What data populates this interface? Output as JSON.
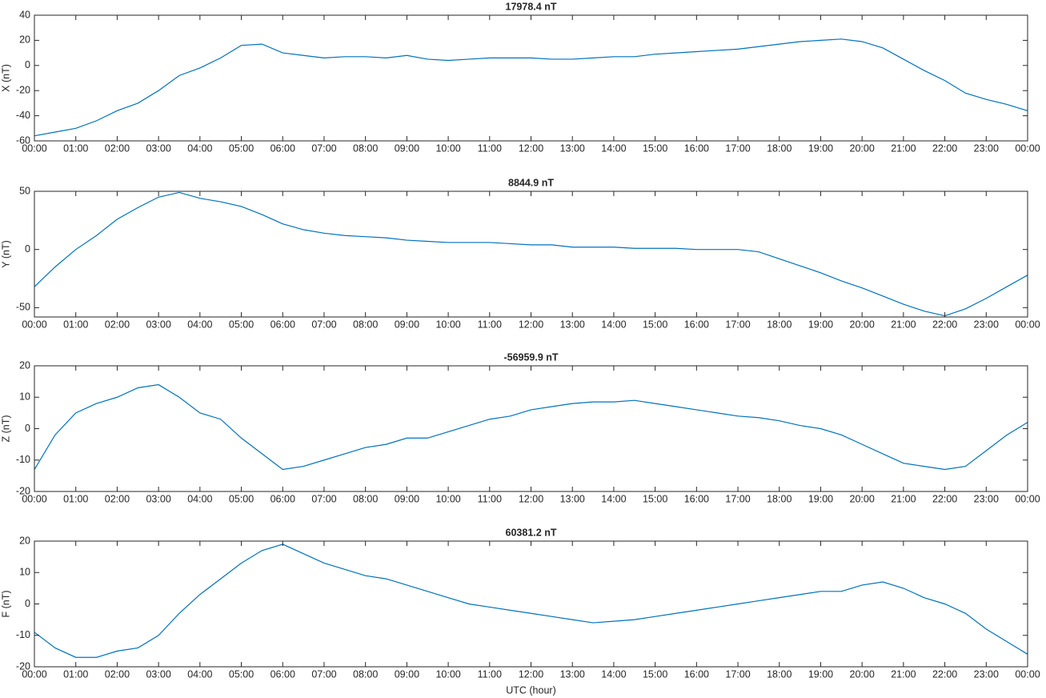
{
  "chart_data": [
    {
      "type": "line",
      "title": "17978.4 nT",
      "y_label": "X (nT)",
      "x": [
        0,
        0.5,
        1,
        1.5,
        2,
        2.5,
        3,
        3.5,
        4,
        4.5,
        5,
        5.5,
        6,
        6.5,
        7,
        7.5,
        8,
        8.5,
        9,
        9.5,
        10,
        10.5,
        11,
        11.5,
        12,
        12.5,
        13,
        13.5,
        14,
        14.5,
        15,
        15.5,
        16,
        16.5,
        17,
        17.5,
        18,
        18.5,
        19,
        19.5,
        20,
        20.5,
        21,
        21.5,
        22,
        22.5,
        23,
        23.5,
        24
      ],
      "values": [
        -56,
        -53,
        -50,
        -44,
        -36,
        -30,
        -20,
        -8,
        -2,
        6,
        16,
        17,
        10,
        8,
        6,
        7,
        7,
        6,
        8,
        5,
        4,
        5,
        6,
        6,
        6,
        5,
        5,
        6,
        7,
        7,
        9,
        10,
        11,
        12,
        13,
        15,
        17,
        19,
        20,
        21,
        19,
        14,
        5,
        -4,
        -12,
        -22,
        -27,
        -31,
        -36
      ],
      "color": "#0072bd",
      "xlim": [
        0,
        24
      ],
      "xticks": [
        {
          "value": 0,
          "label": "00:00"
        },
        {
          "value": 1,
          "label": "01:00"
        },
        {
          "value": 2,
          "label": "02:00"
        },
        {
          "value": 3,
          "label": "03:00"
        },
        {
          "value": 4,
          "label": "04:00"
        },
        {
          "value": 5,
          "label": "05:00"
        },
        {
          "value": 6,
          "label": "06:00"
        },
        {
          "value": 7,
          "label": "07:00"
        },
        {
          "value": 8,
          "label": "08:00"
        },
        {
          "value": 9,
          "label": "09:00"
        },
        {
          "value": 10,
          "label": "10:00"
        },
        {
          "value": 11,
          "label": "11:00"
        },
        {
          "value": 12,
          "label": "12:00"
        },
        {
          "value": 13,
          "label": "13:00"
        },
        {
          "value": 14,
          "label": "14:00"
        },
        {
          "value": 15,
          "label": "15:00"
        },
        {
          "value": 16,
          "label": "16:00"
        },
        {
          "value": 17,
          "label": "17:00"
        },
        {
          "value": 18,
          "label": "18:00"
        },
        {
          "value": 19,
          "label": "19:00"
        },
        {
          "value": 20,
          "label": "20:00"
        },
        {
          "value": 21,
          "label": "21:00"
        },
        {
          "value": 22,
          "label": "22:00"
        },
        {
          "value": 23,
          "label": "23:00"
        },
        {
          "value": 24,
          "label": "00:00"
        }
      ],
      "ylim": [
        -60,
        40
      ],
      "yticks": [
        -60,
        -40,
        -20,
        0,
        20,
        40
      ]
    },
    {
      "type": "line",
      "title": "8844.9 nT",
      "y_label": "Y (nT)",
      "x": [
        0,
        0.5,
        1,
        1.5,
        2,
        2.5,
        3,
        3.5,
        4,
        4.5,
        5,
        5.5,
        6,
        6.5,
        7,
        7.5,
        8,
        8.5,
        9,
        9.5,
        10,
        10.5,
        11,
        11.5,
        12,
        12.5,
        13,
        13.5,
        14,
        14.5,
        15,
        15.5,
        16,
        16.5,
        17,
        17.5,
        18,
        18.5,
        19,
        19.5,
        20,
        20.5,
        21,
        21.5,
        22,
        22.5,
        23,
        23.5,
        24
      ],
      "values": [
        -32,
        -15,
        0,
        12,
        26,
        36,
        45,
        49,
        44,
        41,
        37,
        30,
        22,
        17,
        14,
        12,
        11,
        10,
        8,
        7,
        6,
        6,
        6,
        5,
        4,
        4,
        2,
        2,
        2,
        1,
        1,
        1,
        0,
        0,
        0,
        -2,
        -8,
        -14,
        -20,
        -27,
        -33,
        -40,
        -47,
        -53,
        -57,
        -51,
        -42,
        -32,
        -22
      ],
      "color": "#0072bd",
      "xlim": [
        0,
        24
      ],
      "xticks": [
        {
          "value": 0,
          "label": "00:00"
        },
        {
          "value": 1,
          "label": "01:00"
        },
        {
          "value": 2,
          "label": "02:00"
        },
        {
          "value": 3,
          "label": "03:00"
        },
        {
          "value": 4,
          "label": "04:00"
        },
        {
          "value": 5,
          "label": "05:00"
        },
        {
          "value": 6,
          "label": "06:00"
        },
        {
          "value": 7,
          "label": "07:00"
        },
        {
          "value": 8,
          "label": "08:00"
        },
        {
          "value": 9,
          "label": "09:00"
        },
        {
          "value": 10,
          "label": "10:00"
        },
        {
          "value": 11,
          "label": "11:00"
        },
        {
          "value": 12,
          "label": "12:00"
        },
        {
          "value": 13,
          "label": "13:00"
        },
        {
          "value": 14,
          "label": "14:00"
        },
        {
          "value": 15,
          "label": "15:00"
        },
        {
          "value": 16,
          "label": "16:00"
        },
        {
          "value": 17,
          "label": "17:00"
        },
        {
          "value": 18,
          "label": "18:00"
        },
        {
          "value": 19,
          "label": "19:00"
        },
        {
          "value": 20,
          "label": "20:00"
        },
        {
          "value": 21,
          "label": "21:00"
        },
        {
          "value": 22,
          "label": "22:00"
        },
        {
          "value": 23,
          "label": "23:00"
        },
        {
          "value": 24,
          "label": "00:00"
        }
      ],
      "ylim": [
        -58,
        50
      ],
      "yticks": [
        -50,
        0,
        50
      ]
    },
    {
      "type": "line",
      "title": "-56959.9 nT",
      "y_label": "Z (nT)",
      "x": [
        0,
        0.5,
        1,
        1.5,
        2,
        2.5,
        3,
        3.5,
        4,
        4.5,
        5,
        5.5,
        6,
        6.5,
        7,
        7.5,
        8,
        8.5,
        9,
        9.5,
        10,
        10.5,
        11,
        11.5,
        12,
        12.5,
        13,
        13.5,
        14,
        14.5,
        15,
        15.5,
        16,
        16.5,
        17,
        17.5,
        18,
        18.5,
        19,
        19.5,
        20,
        20.5,
        21,
        21.5,
        22,
        22.5,
        23,
        23.5,
        24
      ],
      "values": [
        -13,
        -2,
        5,
        8,
        10,
        13,
        14,
        10,
        5,
        3,
        -3,
        -8,
        -13,
        -12,
        -10,
        -8,
        -6,
        -5,
        -3,
        -3,
        -1,
        1,
        3,
        4,
        6,
        7,
        8,
        8.5,
        8.5,
        9,
        8,
        7,
        6,
        5,
        4,
        3.5,
        2.5,
        1,
        0,
        -2,
        -5,
        -8,
        -11,
        -12,
        -13,
        -12,
        -7,
        -2,
        2
      ],
      "color": "#0072bd",
      "xlim": [
        0,
        24
      ],
      "xticks": [
        {
          "value": 0,
          "label": "00:00"
        },
        {
          "value": 1,
          "label": "01:00"
        },
        {
          "value": 2,
          "label": "02:00"
        },
        {
          "value": 3,
          "label": "03:00"
        },
        {
          "value": 4,
          "label": "04:00"
        },
        {
          "value": 5,
          "label": "05:00"
        },
        {
          "value": 6,
          "label": "06:00"
        },
        {
          "value": 7,
          "label": "07:00"
        },
        {
          "value": 8,
          "label": "08:00"
        },
        {
          "value": 9,
          "label": "09:00"
        },
        {
          "value": 10,
          "label": "10:00"
        },
        {
          "value": 11,
          "label": "11:00"
        },
        {
          "value": 12,
          "label": "12:00"
        },
        {
          "value": 13,
          "label": "13:00"
        },
        {
          "value": 14,
          "label": "14:00"
        },
        {
          "value": 15,
          "label": "15:00"
        },
        {
          "value": 16,
          "label": "16:00"
        },
        {
          "value": 17,
          "label": "17:00"
        },
        {
          "value": 18,
          "label": "18:00"
        },
        {
          "value": 19,
          "label": "19:00"
        },
        {
          "value": 20,
          "label": "20:00"
        },
        {
          "value": 21,
          "label": "21:00"
        },
        {
          "value": 22,
          "label": "22:00"
        },
        {
          "value": 23,
          "label": "23:00"
        },
        {
          "value": 24,
          "label": "00:00"
        }
      ],
      "ylim": [
        -20,
        20
      ],
      "yticks": [
        -20,
        -10,
        0,
        10,
        20
      ]
    },
    {
      "type": "line",
      "title": "60381.2 nT",
      "y_label": "F (nT)",
      "x_label": "UTC (hour)",
      "x": [
        0,
        0.5,
        1,
        1.5,
        2,
        2.5,
        3,
        3.5,
        4,
        4.5,
        5,
        5.5,
        6,
        6.5,
        7,
        7.5,
        8,
        8.5,
        9,
        9.5,
        10,
        10.5,
        11,
        11.5,
        12,
        12.5,
        13,
        13.5,
        14,
        14.5,
        15,
        15.5,
        16,
        16.5,
        17,
        17.5,
        18,
        18.5,
        19,
        19.5,
        20,
        20.5,
        21,
        21.5,
        22,
        22.5,
        23,
        23.5,
        24
      ],
      "values": [
        -9,
        -14,
        -17,
        -17,
        -15,
        -14,
        -10,
        -3,
        3,
        8,
        13,
        17,
        19,
        16,
        13,
        11,
        9,
        8,
        6,
        4,
        2,
        0,
        -1,
        -2,
        -3,
        -4,
        -5,
        -6,
        -5.5,
        -5,
        -4,
        -3,
        -2,
        -1,
        0,
        1,
        2,
        3,
        4,
        4,
        6,
        7,
        5,
        2,
        0,
        -3,
        -8,
        -12,
        -16
      ],
      "color": "#0072bd",
      "xlim": [
        0,
        24
      ],
      "xticks": [
        {
          "value": 0,
          "label": "00:00"
        },
        {
          "value": 1,
          "label": "01:00"
        },
        {
          "value": 2,
          "label": "02:00"
        },
        {
          "value": 3,
          "label": "03:00"
        },
        {
          "value": 4,
          "label": "04:00"
        },
        {
          "value": 5,
          "label": "05:00"
        },
        {
          "value": 6,
          "label": "06:00"
        },
        {
          "value": 7,
          "label": "07:00"
        },
        {
          "value": 8,
          "label": "08:00"
        },
        {
          "value": 9,
          "label": "09:00"
        },
        {
          "value": 10,
          "label": "10:00"
        },
        {
          "value": 11,
          "label": "11:00"
        },
        {
          "value": 12,
          "label": "12:00"
        },
        {
          "value": 13,
          "label": "13:00"
        },
        {
          "value": 14,
          "label": "14:00"
        },
        {
          "value": 15,
          "label": "15:00"
        },
        {
          "value": 16,
          "label": "16:00"
        },
        {
          "value": 17,
          "label": "17:00"
        },
        {
          "value": 18,
          "label": "18:00"
        },
        {
          "value": 19,
          "label": "19:00"
        },
        {
          "value": 20,
          "label": "20:00"
        },
        {
          "value": 21,
          "label": "21:00"
        },
        {
          "value": 22,
          "label": "22:00"
        },
        {
          "value": 23,
          "label": "23:00"
        },
        {
          "value": 24,
          "label": "00:00"
        }
      ],
      "ylim": [
        -20,
        20
      ],
      "yticks": [
        -20,
        -10,
        0,
        10,
        20
      ]
    }
  ]
}
